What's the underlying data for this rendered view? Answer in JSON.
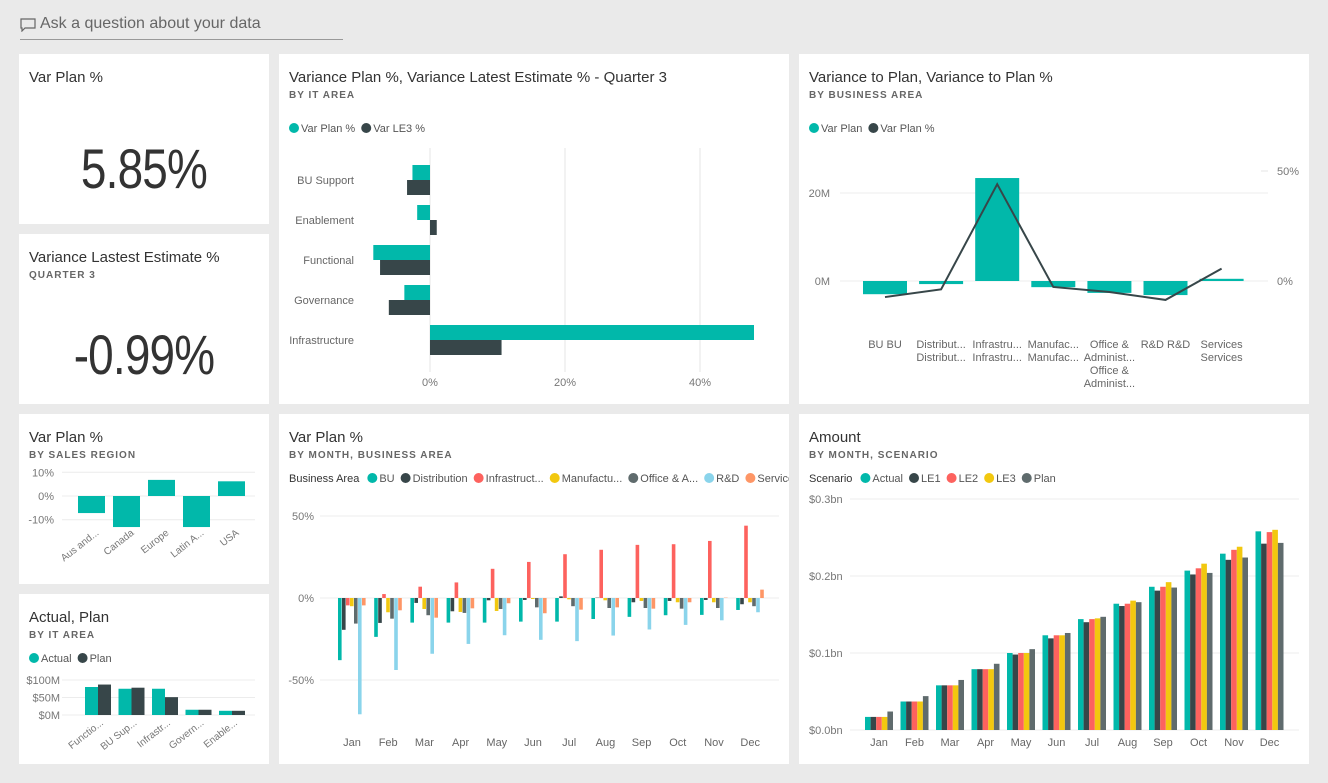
{
  "qa": {
    "placeholder": "Ask a question about your data",
    "icon": "chat-bubble-icon"
  },
  "colors": {
    "teal": "#01b8aa",
    "dark": "#374649",
    "red": "#fd625e",
    "yellow": "#f2c80f",
    "gray": "#5f6b6d",
    "lightblue": "#8ad4eb",
    "orange": "#fe9666"
  },
  "kpi1": {
    "title": "Var Plan %",
    "value": "5.85%"
  },
  "kpi2": {
    "title": "Variance Lastest Estimate %",
    "subtitle": "QUARTER 3",
    "value": "-0.99%"
  },
  "chart_data": [
    {
      "type": "bar",
      "orientation": "horizontal",
      "title": "Variance Plan %, Variance Latest Estimate % - Quarter 3",
      "subtitle": "BY IT AREA",
      "categories": [
        "BU Support",
        "Enablement",
        "Functional",
        "Governance",
        "Infrastructure"
      ],
      "series": [
        {
          "name": "Var Plan %",
          "color": "#01b8aa",
          "values": [
            -2.6,
            -1.9,
            -8.4,
            -3.8,
            48.0
          ]
        },
        {
          "name": "Var LE3 %",
          "color": "#374649",
          "values": [
            -3.4,
            1.0,
            -7.4,
            -6.1,
            10.6
          ]
        }
      ],
      "xticks": [
        0,
        20,
        40
      ],
      "xtick_labels": [
        "0%",
        "20%",
        "40%"
      ],
      "xlim": [
        -10,
        50
      ],
      "grid": true,
      "legend": "top-left"
    },
    {
      "type": "combo",
      "title": "Variance to Plan, Variance to Plan %",
      "subtitle": "BY BUSINESS AREA",
      "categories": [
        [
          "BU BU"
        ],
        [
          "Distribut...",
          "Distribut..."
        ],
        [
          "Infrastru...",
          "Infrastru..."
        ],
        [
          "Manufac...",
          "Manufac..."
        ],
        [
          "Office &",
          "Administ...",
          "Office &",
          "Administ..."
        ],
        [
          "R&D R&D"
        ],
        [
          "Services",
          "Services"
        ]
      ],
      "series": [
        {
          "name": "Var Plan",
          "type": "bar",
          "axis": "left",
          "color": "#01b8aa",
          "values": [
            -3.0,
            -0.7,
            23.4,
            -1.4,
            -2.7,
            -3.2,
            0.5
          ]
        },
        {
          "name": "Var Plan %",
          "type": "line",
          "axis": "right",
          "color": "#374649",
          "values": [
            -7.3,
            -3.8,
            44.0,
            -2.7,
            -5.0,
            -8.6,
            5.6
          ]
        }
      ],
      "yticks_left": [
        0,
        20
      ],
      "ytick_labels_left": [
        "0M",
        "20M"
      ],
      "yticks_right": [
        0,
        50
      ],
      "ytick_labels_right": [
        "0%",
        "50%"
      ],
      "grid": true,
      "legend": "top-left"
    },
    {
      "type": "bar",
      "title": "Var Plan %",
      "subtitle": "BY SALES REGION",
      "categories": [
        "Aus and...",
        "Canada",
        "Europe",
        "Latin A...",
        "USA"
      ],
      "series": [
        {
          "color": "#01b8aa",
          "values": [
            -7.2,
            -13.1,
            6.8,
            -13.1,
            6.2
          ]
        }
      ],
      "yticks": [
        10,
        0,
        -10
      ],
      "ytick_labels": [
        "10%",
        "0%",
        "-10%"
      ],
      "grid": true
    },
    {
      "type": "bar",
      "title": "Actual, Plan",
      "subtitle": "BY IT AREA",
      "categories": [
        "Functio...",
        "BU Sup...",
        "Infrastr...",
        "Govern...",
        "Enable..."
      ],
      "series": [
        {
          "name": "Actual",
          "color": "#01b8aa",
          "values": [
            80,
            75,
            75,
            15,
            12
          ]
        },
        {
          "name": "Plan",
          "color": "#374649",
          "values": [
            87,
            78,
            51,
            15,
            12
          ]
        }
      ],
      "yticks": [
        100,
        50,
        0
      ],
      "ytick_labels": [
        "$100M",
        "$50M",
        "$0M"
      ],
      "grid": true,
      "legend": "top-left"
    },
    {
      "type": "bar",
      "title": "Var Plan %",
      "subtitle": "BY MONTH, BUSINESS AREA",
      "legend_title": "Business Area",
      "categories": [
        "Jan",
        "Feb",
        "Mar",
        "Apr",
        "May",
        "Jun",
        "Jul",
        "Aug",
        "Sep",
        "Oct",
        "Nov",
        "Dec"
      ],
      "series": [
        {
          "name": "BU",
          "color": "#01b8aa",
          "values": [
            -37.9,
            -23.7,
            -15,
            -15,
            -15,
            -14.4,
            -14.4,
            -12.8,
            -11.5,
            -10.5,
            -10.3,
            -7.3
          ]
        },
        {
          "name": "Distribution",
          "color": "#374649",
          "values": [
            -19.4,
            -15.2,
            -3,
            -8.1,
            -1.4,
            -1.2,
            1,
            0.2,
            -2.6,
            -1.8,
            -1.2,
            -3.8
          ]
        },
        {
          "name": "Infrastruct...",
          "color": "#fd625e",
          "values": [
            -4.5,
            2.4,
            6.9,
            9.5,
            17.8,
            22,
            26.7,
            29.4,
            32.4,
            32.8,
            34.8,
            44.1
          ]
        },
        {
          "name": "Manufactu...",
          "color": "#f2c80f",
          "values": [
            -5,
            -8.7,
            -6.7,
            -8.5,
            -7.9,
            -0.6,
            -0.8,
            -1.4,
            -1.8,
            -2.6,
            -2.6,
            -2.6
          ]
        },
        {
          "name": "Office & A...",
          "color": "#5f6b6d",
          "values": [
            -15.6,
            -12.6,
            -10.5,
            -9.1,
            -6.7,
            -5.7,
            -5,
            -6.1,
            -6.1,
            -6.5,
            -6.1,
            -5
          ]
        },
        {
          "name": "R&D",
          "color": "#8ad4eb",
          "values": [
            -70.9,
            -43.9,
            -34,
            -28,
            -22.7,
            -25.5,
            -26.3,
            -22.9,
            -19.2,
            -16.4,
            -13.6,
            -8.7
          ]
        },
        {
          "name": "Services",
          "color": "#fe9666",
          "values": [
            -4.5,
            -7.5,
            -12,
            -6.3,
            -3.2,
            -9.3,
            -7.1,
            -5.7,
            -6.5,
            -2.6,
            0.2,
            5.1
          ]
        }
      ],
      "yticks": [
        50,
        0,
        -50
      ],
      "ytick_labels": [
        "50%",
        "0%",
        "-50%"
      ],
      "grid": true,
      "legend": "top-left"
    },
    {
      "type": "bar",
      "title": "Amount",
      "subtitle": "BY MONTH, SCENARIO",
      "legend_title": "Scenario",
      "categories": [
        "Jan",
        "Feb",
        "Mar",
        "Apr",
        "May",
        "Jun",
        "Jul",
        "Aug",
        "Sep",
        "Oct",
        "Nov",
        "Dec"
      ],
      "series": [
        {
          "name": "Actual",
          "color": "#01b8aa",
          "values": [
            0.017,
            0.037,
            0.058,
            0.079,
            0.1,
            0.123,
            0.144,
            0.164,
            0.186,
            0.207,
            0.229,
            0.258
          ]
        },
        {
          "name": "LE1",
          "color": "#374649",
          "values": [
            0.017,
            0.037,
            0.058,
            0.079,
            0.098,
            0.119,
            0.14,
            0.161,
            0.181,
            0.202,
            0.221,
            0.242
          ]
        },
        {
          "name": "LE2",
          "color": "#fd625e",
          "values": [
            0.017,
            0.037,
            0.058,
            0.079,
            0.1,
            0.123,
            0.144,
            0.164,
            0.186,
            0.21,
            0.234,
            0.257
          ]
        },
        {
          "name": "LE3",
          "color": "#f2c80f",
          "values": [
            0.017,
            0.037,
            0.058,
            0.079,
            0.1,
            0.123,
            0.145,
            0.168,
            0.192,
            0.216,
            0.238,
            0.26
          ]
        },
        {
          "name": "Plan",
          "color": "#5f6b6d",
          "values": [
            0.024,
            0.044,
            0.065,
            0.086,
            0.105,
            0.126,
            0.147,
            0.166,
            0.185,
            0.204,
            0.224,
            0.243
          ]
        }
      ],
      "yticks": [
        0.3,
        0.2,
        0.1,
        0.0
      ],
      "ytick_labels": [
        "$0.3bn",
        "$0.2bn",
        "$0.1bn",
        "$0.0bn"
      ],
      "grid": true,
      "legend": "top-left"
    }
  ]
}
